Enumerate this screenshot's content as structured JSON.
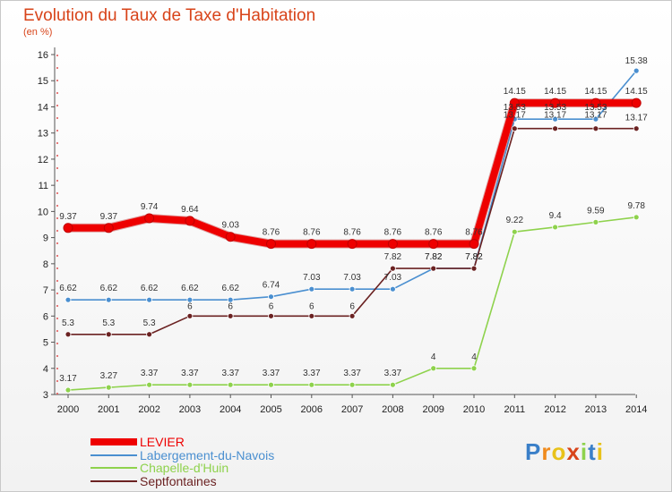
{
  "chart_data": {
    "type": "line",
    "title": "Evolution du Taux de Taxe d'Habitation",
    "subtitle": "(en %)",
    "x": [
      "2000",
      "2001",
      "2002",
      "2003",
      "2004",
      "2005",
      "2006",
      "2007",
      "2008",
      "2009",
      "2010",
      "2011",
      "2012",
      "2013",
      "2014"
    ],
    "ylim": [
      3,
      16
    ],
    "yticks": [
      "3",
      "4",
      "5",
      "6",
      "7",
      "8",
      "9",
      "10",
      "11",
      "12",
      "13",
      "14",
      "15",
      "16"
    ],
    "grid": false,
    "legend_position": "bottom-left",
    "series": [
      {
        "name": "LEVIER",
        "color": "#ee0000",
        "values": [
          9.37,
          9.37,
          9.74,
          9.64,
          9.03,
          8.76,
          8.76,
          8.76,
          8.76,
          8.76,
          8.76,
          14.15,
          14.15,
          14.15,
          14.15
        ],
        "labels": [
          "9.37",
          "9.37",
          "9.74",
          "9.64",
          "9.03",
          "8.76",
          "8.76",
          "8.76",
          "8.76",
          "8.76",
          "8.76",
          "14.15",
          "14.15",
          "14.15",
          "14.15"
        ]
      },
      {
        "name": "Labergement-du-Navois",
        "color": "#4a8fd0",
        "values": [
          6.62,
          6.62,
          6.62,
          6.62,
          6.62,
          6.74,
          7.03,
          7.03,
          7.03,
          7.82,
          7.82,
          13.53,
          13.53,
          13.53,
          15.38
        ],
        "labels": [
          "6.62",
          "6.62",
          "6.62",
          "6.62",
          "6.62",
          "6.74",
          "7.03",
          "7.03",
          "7.03",
          "7.82",
          "7.82",
          "13.53",
          "13.53",
          "13.53",
          "15.38"
        ]
      },
      {
        "name": "Chapelle-d'Huin",
        "color": "#8ed24c",
        "values": [
          3.17,
          3.27,
          3.37,
          3.37,
          3.37,
          3.37,
          3.37,
          3.37,
          3.37,
          4,
          4,
          9.22,
          9.4,
          9.59,
          9.78
        ],
        "labels": [
          "3.17",
          "3.27",
          "3.37",
          "3.37",
          "3.37",
          "3.37",
          "3.37",
          "3.37",
          "3.37",
          "4",
          "4",
          "9.22",
          "9.4",
          "9.59",
          "9.78"
        ]
      },
      {
        "name": "Septfontaines",
        "color": "#6b2222",
        "values": [
          5.3,
          5.3,
          5.3,
          6,
          6,
          6,
          6,
          6,
          7.82,
          7.82,
          7.82,
          13.17,
          13.17,
          13.17,
          13.17
        ],
        "labels": [
          "5.3",
          "5.3",
          "5.3",
          "6",
          "6",
          "6",
          "6",
          "6",
          "7.82",
          "7.82",
          "7.82",
          "13.17",
          "13.17",
          "13.17",
          "13.17"
        ]
      }
    ]
  },
  "logo": {
    "text": "Proxiti",
    "letters": [
      "P",
      "r",
      "o",
      "x",
      "i",
      "t",
      "i"
    ],
    "colors": [
      "#3a7fc8",
      "#f08a1c",
      "#e8c21a",
      "#d8441a",
      "#8ed24c",
      "#3a7fc8",
      "#e8c21a"
    ]
  }
}
